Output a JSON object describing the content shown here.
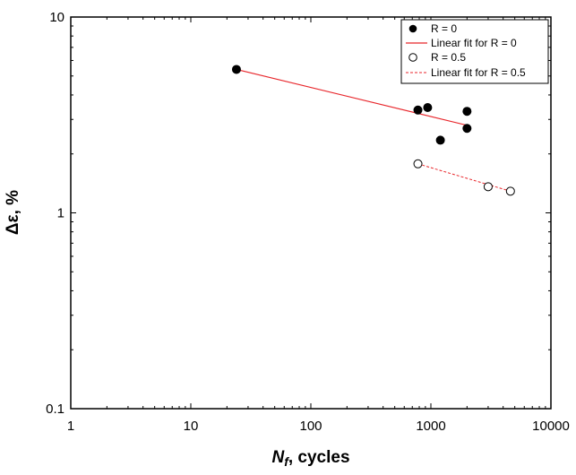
{
  "chart_data": {
    "type": "scatter",
    "xscale": "log",
    "yscale": "log",
    "xlim": [
      1,
      10000
    ],
    "ylim": [
      0.1,
      10
    ],
    "xticks": [
      1,
      10,
      100,
      1000,
      10000
    ],
    "yticks": [
      0.1,
      1,
      10
    ],
    "xtick_labels": [
      "1",
      "10",
      "100",
      "1000",
      "10000"
    ],
    "ytick_labels": [
      "0.1",
      "1",
      "10"
    ],
    "xlabel": {
      "italic_main": "N",
      "italic_sub": "f",
      "rest": ", cycles"
    },
    "ylabel": "Δε, %",
    "grid": false,
    "legend_position": "top-right",
    "series": [
      {
        "name": "R = 0",
        "marker": "filled-circle",
        "color": "#000000",
        "points": [
          {
            "x": 24,
            "y": 5.4
          },
          {
            "x": 780,
            "y": 3.35
          },
          {
            "x": 940,
            "y": 3.45
          },
          {
            "x": 1200,
            "y": 2.35
          },
          {
            "x": 2000,
            "y": 3.3
          },
          {
            "x": 2000,
            "y": 2.7
          }
        ]
      },
      {
        "name": "Linear fit for R = 0",
        "line": "solid",
        "color": "#e8262b",
        "points": [
          {
            "x": 24,
            "y": 5.4
          },
          {
            "x": 2000,
            "y": 2.8
          }
        ]
      },
      {
        "name": "R = 0.5",
        "marker": "open-circle",
        "color": "#000000",
        "points": [
          {
            "x": 780,
            "y": 1.78
          },
          {
            "x": 3000,
            "y": 1.36
          },
          {
            "x": 4600,
            "y": 1.29
          }
        ]
      },
      {
        "name": "Linear fit for R = 0.5",
        "line": "dashed",
        "color": "#e8262b",
        "points": [
          {
            "x": 780,
            "y": 1.78
          },
          {
            "x": 4600,
            "y": 1.29
          }
        ]
      }
    ]
  }
}
